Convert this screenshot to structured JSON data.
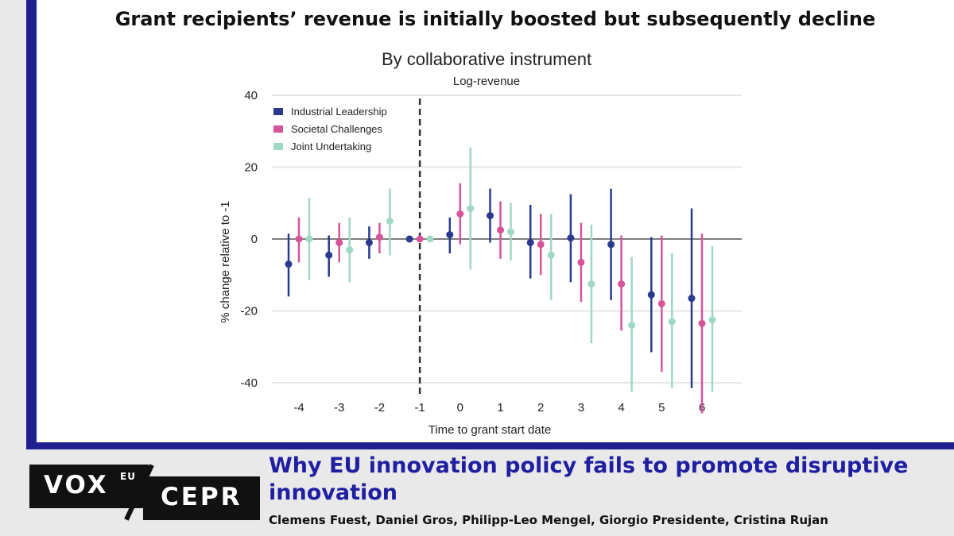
{
  "headline": "Grant recipients’ revenue is initially boosted but subsequently decline",
  "footer": {
    "title": "Why EU innovation policy fails to promote disruptive innovation",
    "authors": "Clemens Fuest, Daniel Gros, Philipp-Leo Mengel, Giorgio Presidente, Cristina Rujan",
    "logo_vox": "VOX",
    "logo_vox_sup": "EU",
    "logo_cepr": "CEPR"
  },
  "chart_data": {
    "type": "scatter",
    "subtype": "coefficient-plot-with-confidence-intervals",
    "title": "By collaborative instrument",
    "subtitle": "Log-revenue",
    "xlabel": "Time to grant start date",
    "ylabel": "% change relative to -1",
    "ylim": [
      -40,
      40
    ],
    "yticks": [
      "40",
      "20",
      "0",
      "-20",
      "-40"
    ],
    "ytick_values": [
      40,
      20,
      0,
      -20,
      -40
    ],
    "categories": [
      "-4",
      "-3",
      "-2",
      "-1",
      "0",
      "1",
      "2",
      "3",
      "4",
      "5",
      "6"
    ],
    "reference_vline": "-1",
    "legend_position": "top-left",
    "series": [
      {
        "name": "Industrial Leadership",
        "color": "#2a3a8f",
        "values": [
          -7,
          -4.5,
          -1,
          0,
          1.2,
          6.5,
          -1,
          0.3,
          -1.5,
          -15.5,
          -16.5
        ],
        "lower": [
          -16,
          -10.5,
          -5.5,
          0,
          -4,
          -1,
          -11,
          -12,
          -17,
          -31.5,
          -41.5
        ],
        "upper": [
          1.5,
          1,
          3.5,
          0,
          6,
          14,
          9.5,
          12.5,
          14,
          0.5,
          8.5
        ]
      },
      {
        "name": "Societal Challenges",
        "color": "#d6559a",
        "values": [
          0,
          -1,
          0.5,
          0,
          7,
          2.5,
          -1.5,
          -6.5,
          -12.5,
          -18,
          -23.5
        ],
        "lower": [
          -6.5,
          -6.5,
          -4,
          0,
          -1.5,
          -5.5,
          -10,
          -17.5,
          -25.5,
          -37,
          -48.5
        ],
        "upper": [
          6,
          4.5,
          4.5,
          0,
          15.5,
          10.5,
          7,
          4.5,
          1,
          1,
          1.5
        ]
      },
      {
        "name": "Joint Undertaking",
        "color": "#9fd8c4",
        "values": [
          0,
          -3,
          5,
          0,
          8.5,
          2,
          -4.5,
          -12.5,
          -24,
          -23,
          -22.5
        ],
        "lower": [
          -11.5,
          -12,
          -4.5,
          0,
          -8.5,
          -6,
          -17,
          -29,
          -42.5,
          -41.5,
          -42.5
        ],
        "upper": [
          11.5,
          6,
          14,
          0,
          25.5,
          10,
          7,
          4,
          -5,
          -4,
          -2
        ]
      }
    ]
  }
}
